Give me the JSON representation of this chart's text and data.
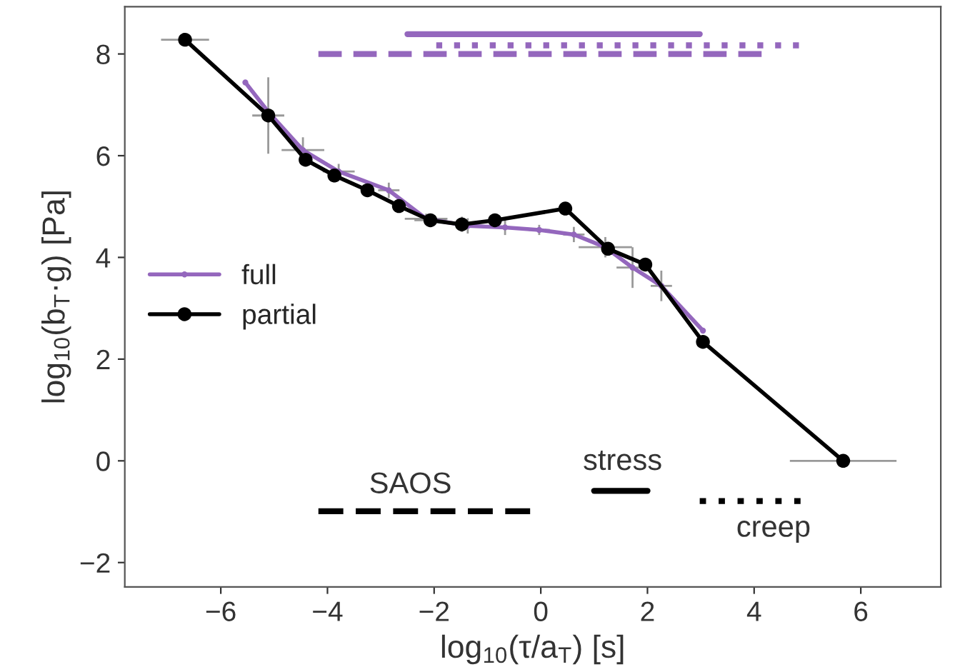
{
  "chart_data": {
    "type": "line",
    "xlabel": "log$_{10}$(τ/a$_{T}$) [s]",
    "ylabel": "log$_{10}$(b$_{T}$·g) [Pa]",
    "xlim": [
      -7.8,
      7.5
    ],
    "ylim": [
      -2.48,
      8.93
    ],
    "xticks": [
      {
        "value": -6,
        "label": "−6"
      },
      {
        "value": -4,
        "label": "−4"
      },
      {
        "value": -2,
        "label": "−2"
      },
      0,
      2,
      4,
      6
    ],
    "yticks": [
      {
        "value": -2,
        "label": "−2"
      },
      0,
      2,
      4,
      6,
      8
    ],
    "grid": false,
    "legend": "left",
    "series": [
      {
        "name": "full",
        "color": "#9467bd",
        "marker": "circle",
        "line_style": "solid",
        "x": [
          -5.54,
          -5.1,
          -4.46,
          -3.79,
          -2.85,
          -2.15,
          -1.37,
          -0.67,
          -0.03,
          0.62,
          1.21,
          1.72,
          2.26,
          3.04
        ],
        "values": [
          7.44,
          6.85,
          6.11,
          5.69,
          5.32,
          4.76,
          4.62,
          4.59,
          4.54,
          4.45,
          4.2,
          3.8,
          3.44,
          2.56
        ],
        "errors": [
          null,
          null,
          0.25,
          0.15,
          0.15,
          0.1,
          0.15,
          0.15,
          0.1,
          0.15,
          0.2,
          0.4,
          0.3,
          null
        ],
        "xerrors": [
          null,
          null,
          0.4,
          0.3,
          0.2,
          0.4,
          0.2,
          0.2,
          0.2,
          0.2,
          0.5,
          0.3,
          0.2,
          null
        ]
      },
      {
        "name": "partial",
        "color": "#000000",
        "marker": "circle",
        "line_style": "solid",
        "x": [
          -6.67,
          -5.11,
          -4.41,
          -3.87,
          -3.25,
          -2.66,
          -2.07,
          -1.48,
          -0.86,
          0.46,
          1.26,
          1.96,
          3.04,
          5.67
        ],
        "values": [
          8.28,
          6.79,
          5.92,
          5.61,
          5.32,
          5.01,
          4.73,
          4.65,
          4.73,
          4.96,
          4.17,
          3.86,
          2.34,
          0.0
        ],
        "errors": [
          null,
          0.75,
          null,
          null,
          null,
          null,
          null,
          0.15,
          null,
          null,
          null,
          null,
          null,
          null
        ],
        "xerrors": [
          0.45,
          0.3,
          null,
          null,
          null,
          null,
          0.3,
          null,
          null,
          null,
          null,
          null,
          null,
          1.0
        ]
      },
      {
        "color": "#9467bd",
        "marker": "none",
        "line_style": "solid",
        "x": [
          -2.5,
          2.98
        ],
        "values": [
          8.39,
          8.39
        ]
      },
      {
        "color": "#9467bd",
        "marker": "none",
        "line_style": "dotted",
        "x": [
          -1.96,
          4.84
        ],
        "values": [
          8.17,
          8.17
        ]
      },
      {
        "color": "#9467bd",
        "marker": "none",
        "line_style": "dashed",
        "x": [
          -4.17,
          4.14
        ],
        "values": [
          8.0,
          8.0
        ]
      },
      {
        "color": "#000000",
        "marker": "none",
        "line_style": "dashed",
        "x": [
          -4.17,
          -0.2
        ],
        "values": [
          -0.99,
          -0.99
        ]
      },
      {
        "color": "#000000",
        "marker": "none",
        "line_style": "solid",
        "x": [
          1.0,
          2.0
        ],
        "values": [
          -0.59,
          -0.59
        ]
      },
      {
        "color": "#000000",
        "marker": "none",
        "line_style": "dotted",
        "x": [
          2.98,
          4.87
        ],
        "values": [
          -0.79,
          -0.79
        ]
      }
    ],
    "annotations": [
      "SAOS",
      "stress",
      "creep"
    ]
  }
}
